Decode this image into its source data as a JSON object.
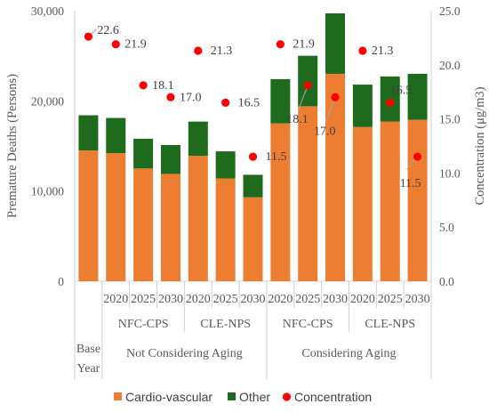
{
  "chart_data": {
    "type": "bar",
    "stacked": true,
    "categories": [
      {
        "sub": "",
        "group": "Base Year",
        "outer": ""
      },
      {
        "sub": "2020",
        "group": "NFC-CPS",
        "outer": "Not Considering Aging"
      },
      {
        "sub": "2025",
        "group": "NFC-CPS",
        "outer": "Not Considering Aging"
      },
      {
        "sub": "2030",
        "group": "NFC-CPS",
        "outer": "Not Considering Aging"
      },
      {
        "sub": "2020",
        "group": "CLE-NPS",
        "outer": "Not Considering Aging"
      },
      {
        "sub": "2025",
        "group": "CLE-NPS",
        "outer": "Not Considering Aging"
      },
      {
        "sub": "2030",
        "group": "CLE-NPS",
        "outer": "Not Considering Aging"
      },
      {
        "sub": "2020",
        "group": "NFC-CPS",
        "outer": "Considering Aging"
      },
      {
        "sub": "2025",
        "group": "NFC-CPS",
        "outer": "Considering Aging"
      },
      {
        "sub": "2030",
        "group": "NFC-CPS",
        "outer": "Considering Aging"
      },
      {
        "sub": "2020",
        "group": "CLE-NPS",
        "outer": "Considering Aging"
      },
      {
        "sub": "2025",
        "group": "CLE-NPS",
        "outer": "Considering Aging"
      },
      {
        "sub": "2030",
        "group": "CLE-NPS",
        "outer": "Considering Aging"
      }
    ],
    "base_year_label": [
      "Base",
      "Year"
    ],
    "groups": [
      {
        "label": "NFC-CPS"
      },
      {
        "label": "CLE-NPS"
      },
      {
        "label": "NFC-CPS"
      },
      {
        "label": "CLE-NPS"
      }
    ],
    "outer_groups": [
      {
        "label": "Not Considering Aging"
      },
      {
        "label": "Considering Aging"
      }
    ],
    "series": [
      {
        "name": "Cardio-vascular",
        "color": "#ED7D31",
        "axis": "left",
        "values": [
          14500,
          14200,
          12500,
          11900,
          13900,
          11400,
          9300,
          17500,
          19400,
          23000,
          17100,
          17700,
          17900
        ]
      },
      {
        "name": "Other",
        "color": "#1E6B1E",
        "axis": "left",
        "values": [
          3900,
          3900,
          3300,
          3200,
          3800,
          3000,
          2500,
          4900,
          5600,
          6700,
          4700,
          5000,
          5100
        ]
      },
      {
        "name": "Concentration",
        "color": "#FF0000",
        "axis": "right",
        "type": "scatter",
        "values": [
          22.6,
          21.9,
          18.1,
          17.0,
          21.3,
          16.5,
          11.5,
          21.9,
          18.1,
          17.0,
          21.3,
          16.5,
          11.5
        ],
        "labels": [
          "22.6",
          "21.9",
          "18.1",
          "17.0",
          "21.3",
          "16.5",
          "11.5",
          "21.9",
          "18.1",
          "17.0",
          "21.3",
          "16.5",
          "11.5"
        ]
      }
    ],
    "ylabel": "Premature Deaths (Persons)",
    "y2label": "Concentration (μg/m3)",
    "ylim": [
      0,
      30000
    ],
    "y2lim": [
      0,
      25
    ],
    "yticks": [
      "0",
      "10,000",
      "20,000",
      "30,000"
    ],
    "y2ticks": [
      "0.0",
      "5.0",
      "10.0",
      "15.0",
      "20.0",
      "25.0"
    ],
    "grid": false,
    "legend_position": "bottom"
  }
}
